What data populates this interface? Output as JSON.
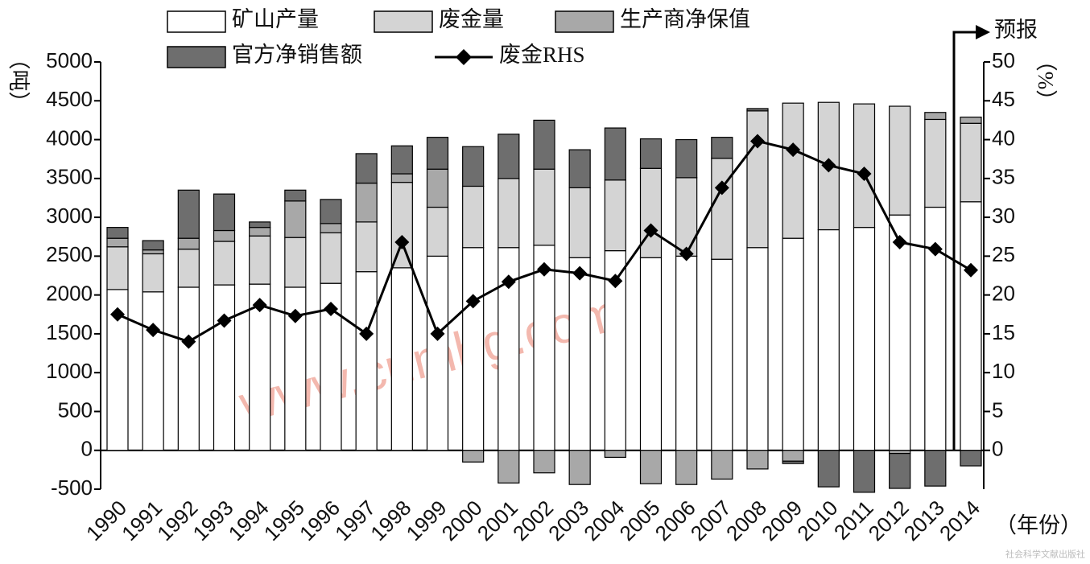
{
  "chart_data": {
    "type": "bar",
    "stacked": true,
    "categories": [
      "1990",
      "1991",
      "1992",
      "1993",
      "1994",
      "1995",
      "1996",
      "1997",
      "1998",
      "1999",
      "2000",
      "2001",
      "2002",
      "2003",
      "2004",
      "2005",
      "2006",
      "2007",
      "2008",
      "2009",
      "2010",
      "2011",
      "2012",
      "2013",
      "2014"
    ],
    "series": [
      {
        "name": "矿山产量",
        "type": "bar",
        "color": "#ffffff",
        "values": [
          2070,
          2040,
          2100,
          2130,
          2140,
          2100,
          2150,
          2300,
          2350,
          2500,
          2610,
          2610,
          2640,
          2480,
          2570,
          2480,
          2500,
          2460,
          2610,
          2730,
          2840,
          2870,
          3030,
          3130,
          3200
        ]
      },
      {
        "name": "废金量",
        "type": "bar",
        "color": "#d4d4d4",
        "values": [
          550,
          490,
          490,
          560,
          620,
          640,
          650,
          640,
          1100,
          630,
          790,
          890,
          980,
          900,
          910,
          1150,
          1010,
          1300,
          1760,
          1740,
          1640,
          1590,
          1400,
          1130,
          1010
        ]
      },
      {
        "name": "生产商净保值",
        "type": "bar",
        "color": "#a8a8a8",
        "values": [
          110,
          50,
          140,
          140,
          110,
          470,
          120,
          500,
          110,
          490,
          -150,
          -420,
          -290,
          -440,
          -90,
          -430,
          -440,
          -370,
          -240,
          -140,
          0,
          0,
          -40,
          90,
          80
        ]
      },
      {
        "name": "官方净销售额",
        "type": "bar",
        "color": "#6e6e6e",
        "values": [
          140,
          120,
          620,
          470,
          70,
          140,
          310,
          380,
          360,
          410,
          510,
          570,
          630,
          490,
          670,
          380,
          490,
          270,
          30,
          -30,
          -470,
          -540,
          -450,
          -460,
          -200
        ]
      },
      {
        "name": "废金RHS",
        "type": "line",
        "axis": "y2",
        "color": "#000000",
        "values": [
          17.5,
          15.5,
          14,
          16.7,
          18.7,
          17.3,
          18.2,
          15,
          26.8,
          15,
          19.2,
          21.7,
          23.3,
          22.8,
          21.8,
          28.3,
          25.3,
          33.8,
          39.8,
          38.7,
          36.7,
          35.6,
          26.8,
          25.9,
          23.2
        ]
      }
    ],
    "ylim": [
      -500,
      5000
    ],
    "yticks": [
      -500,
      0,
      500,
      1000,
      1500,
      2000,
      2500,
      3000,
      3500,
      4000,
      4500,
      5000
    ],
    "y2lim": [
      -5,
      50
    ],
    "y2ticks": [
      0,
      5,
      10,
      15,
      20,
      25,
      30,
      35,
      40,
      45,
      50
    ],
    "y_label": "（吨）",
    "y2_label": "（%）",
    "x_label": "（年份）",
    "annotation": "预报",
    "watermark": "www.cnmhg.com",
    "source": "社会科学文献出版社"
  }
}
